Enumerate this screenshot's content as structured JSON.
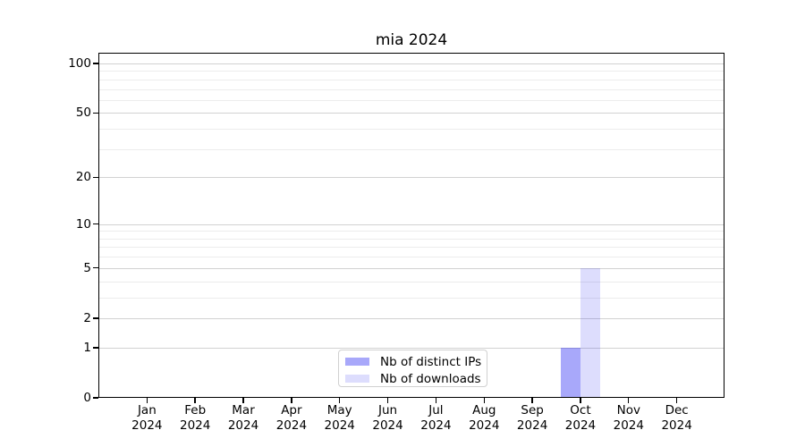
{
  "chart_data": {
    "type": "bar",
    "title": "mia 2024",
    "categories": [
      "Jan 2024",
      "Feb 2024",
      "Mar 2024",
      "Apr 2024",
      "May 2024",
      "Jun 2024",
      "Jul 2024",
      "Aug 2024",
      "Sep 2024",
      "Oct 2024",
      "Nov 2024",
      "Dec 2024"
    ],
    "series": [
      {
        "name": "Nb of distinct IPs",
        "color": "#0000f0",
        "alpha": 0.34,
        "values": [
          0,
          0,
          0,
          0,
          0,
          0,
          0,
          0,
          0,
          1,
          0,
          0
        ]
      },
      {
        "name": "Nb of downloads",
        "color": "#0000f0",
        "alpha": 0.135,
        "values": [
          0,
          0,
          0,
          0,
          0,
          0,
          0,
          0,
          0,
          5,
          0,
          0
        ]
      }
    ],
    "yaxis": {
      "scale": "log10(1+y)",
      "major_ticks": [
        0,
        1,
        2,
        5,
        10,
        20,
        50,
        100
      ],
      "minor_gridlines": [
        3,
        4,
        6,
        7,
        8,
        9,
        30,
        40,
        60,
        70,
        80,
        90
      ],
      "range": [
        0,
        113
      ]
    },
    "xlabel": "",
    "ylabel": "",
    "grid": true,
    "legend_position": "lower center"
  }
}
